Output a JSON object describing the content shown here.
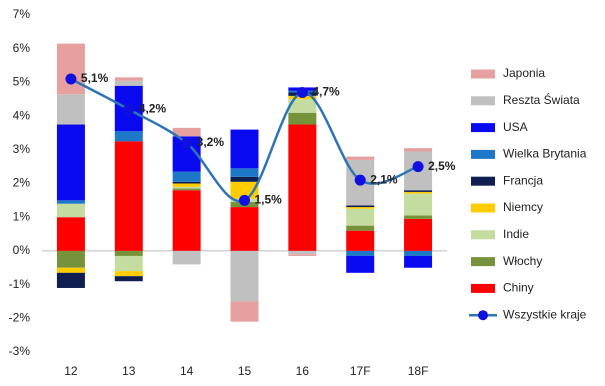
{
  "chart_data": {
    "type": "stacked-bar-line",
    "categories": [
      "12",
      "13",
      "14",
      "15",
      "16",
      "17F",
      "18F"
    ],
    "ylim": [
      -3,
      7
    ],
    "yticks": [
      {
        "value": -3,
        "label": "-3%"
      },
      {
        "value": -2,
        "label": "-2%"
      },
      {
        "value": -1,
        "label": "-1%"
      },
      {
        "value": 0,
        "label": "0%"
      },
      {
        "value": 1,
        "label": "1%"
      },
      {
        "value": 2,
        "label": "2%"
      },
      {
        "value": 3,
        "label": "3%"
      },
      {
        "value": 4,
        "label": "4%"
      },
      {
        "value": 5,
        "label": "5%"
      },
      {
        "value": 6,
        "label": "6%"
      },
      {
        "value": 7,
        "label": "7%"
      }
    ],
    "series": [
      {
        "name": "Chiny",
        "color": "#ff0000",
        "values": [
          1.0,
          3.25,
          1.8,
          1.3,
          3.75,
          0.6,
          0.95
        ]
      },
      {
        "name": "Włochy",
        "color": "#76933c",
        "values": [
          -0.5,
          -0.15,
          0.05,
          0.15,
          0.35,
          0.15,
          0.1
        ]
      },
      {
        "name": "Indie",
        "color": "#c4dca0",
        "values": [
          0.4,
          -0.45,
          0.05,
          0.1,
          0.4,
          0.5,
          0.65
        ]
      },
      {
        "name": "Niemcy",
        "color": "#ffcc00",
        "values": [
          -0.15,
          -0.15,
          0.1,
          0.5,
          0.1,
          0.05,
          0.05
        ]
      },
      {
        "name": "Francja",
        "color": "#0f1f4f",
        "values": [
          -0.45,
          -0.15,
          0.05,
          0.15,
          0.1,
          0.05,
          0.05
        ]
      },
      {
        "name": "Wielka Brytania",
        "color": "#1e78c8",
        "values": [
          0.1,
          0.3,
          0.3,
          0.25,
          0.05,
          -0.15,
          -0.15
        ]
      },
      {
        "name": "USA",
        "color": "#0a0af0",
        "values": [
          2.25,
          1.35,
          1.05,
          1.15,
          0.1,
          -0.5,
          -0.35
        ]
      },
      {
        "name": "Reszta Świata",
        "color": "#c0c0c0",
        "values": [
          0.9,
          0.15,
          -0.4,
          -1.5,
          -0.1,
          1.35,
          1.15
        ]
      },
      {
        "name": "Japonia",
        "color": "#e6a0a0",
        "values": [
          1.5,
          0.1,
          0.25,
          -0.6,
          -0.05,
          0.1,
          0.1
        ]
      },
      {
        "name": "Wszystkie kraje",
        "type": "line",
        "color": "#2e75b6",
        "marker_color": "#1010e0",
        "values": [
          5.1,
          4.2,
          3.2,
          1.5,
          4.7,
          2.1,
          2.5
        ],
        "value_labels": [
          "5,1%",
          "4,2%",
          "3,2%",
          "1,5%",
          "4,7%",
          "2,1%",
          "2,5%"
        ]
      }
    ]
  }
}
